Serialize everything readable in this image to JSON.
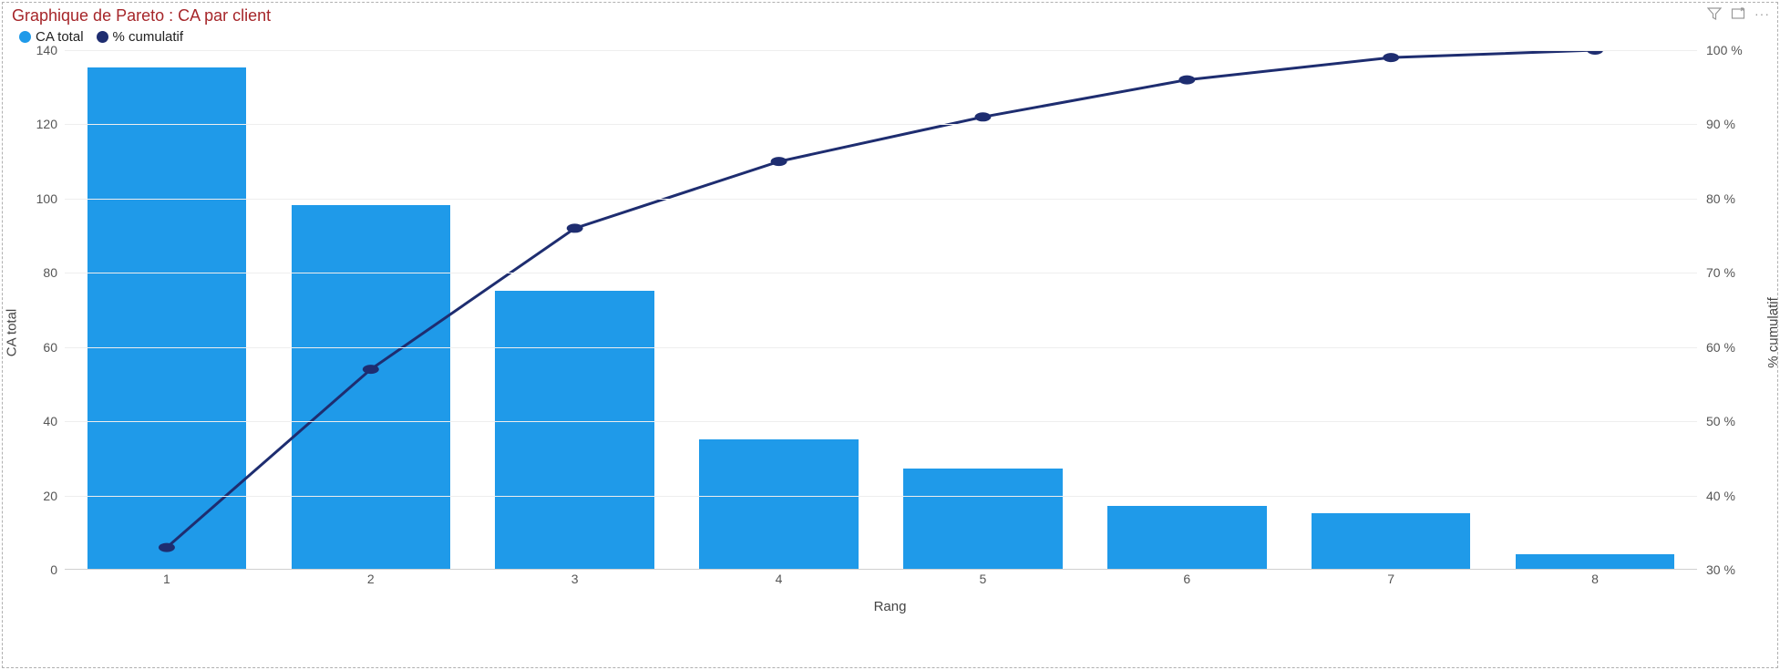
{
  "title": "Graphique de Pareto : CA par client",
  "title_color": "#a6262a",
  "title_fontsize": 18,
  "legend": {
    "series1": {
      "label": "CA total",
      "color": "#1f9ae9",
      "swatch_shape": "circle"
    },
    "series2": {
      "label": "% cumulatif",
      "color": "#1e2d70",
      "swatch_shape": "circle"
    }
  },
  "chart": {
    "type": "pareto",
    "x_label": "Rang",
    "y_left_label": "CA total",
    "y_right_label": "% cumulatif",
    "categories": [
      "1",
      "2",
      "3",
      "4",
      "5",
      "6",
      "7",
      "8"
    ],
    "bar_values": [
      135,
      98,
      75,
      35,
      27,
      17,
      15,
      4
    ],
    "line_values_pct": [
      33,
      57,
      76,
      85,
      91,
      96,
      99,
      100
    ],
    "bar_color": "#1f9ae9",
    "line_color": "#1e2d70",
    "line_width": 3,
    "marker_radius": 5,
    "y_left": {
      "min": 0,
      "max": 140,
      "step": 20
    },
    "y_right": {
      "min": 30,
      "max": 100,
      "step": 10,
      "suffix": " %"
    },
    "grid_color": "#eeeeee",
    "axis_color": "#d0d0d0",
    "background": "#ffffff",
    "bar_width_ratio": 0.78,
    "label_fontsize": 15,
    "tick_fontsize": 14
  },
  "toolbar": {
    "filter_tooltip": "Filtres",
    "focus_tooltip": "Mode focus",
    "more_tooltip": "Plus d’options"
  }
}
